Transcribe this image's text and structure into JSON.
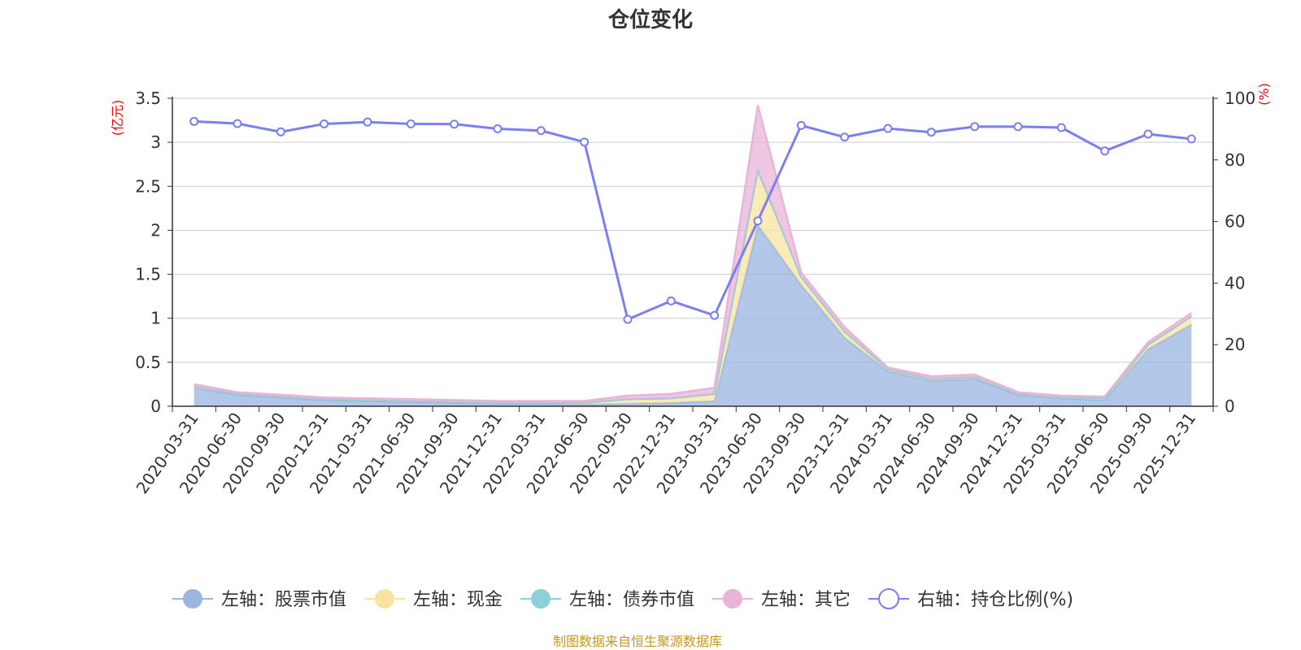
{
  "chart_data": {
    "type": "area",
    "title": "仓位变化",
    "categories": [
      "2020-03-31",
      "2020-06-30",
      "2020-09-30",
      "2020-12-31",
      "2021-03-31",
      "2021-06-30",
      "2021-09-30",
      "2021-12-31",
      "2022-03-31",
      "2022-06-30",
      "2022-09-30",
      "2022-12-31",
      "2023-03-31",
      "2023-06-30",
      "2023-09-30",
      "2023-12-31",
      "2024-03-31",
      "2024-06-30",
      "2024-09-30",
      "2024-12-31",
      "2025-03-31",
      "2025-06-30",
      "2025-09-30",
      "2025-12-31"
    ],
    "left_axis": {
      "unit_label": "(亿元)",
      "ylim": [
        0,
        3.5
      ],
      "ticks": [
        "0",
        "0.5",
        "1",
        "1.5",
        "2",
        "2.5",
        "3",
        "3.5"
      ]
    },
    "right_axis": {
      "unit_label": "(%)",
      "ylim": [
        0,
        100
      ],
      "ticks": [
        "0",
        "20",
        "40",
        "60",
        "80",
        "100"
      ]
    },
    "series": [
      {
        "name": "左轴：股票市值",
        "kind": "area",
        "axis": "left",
        "color": "#9ab6e0",
        "values": [
          0.21,
          0.13,
          0.1,
          0.07,
          0.06,
          0.05,
          0.04,
          0.03,
          0.03,
          0.02,
          0.03,
          0.04,
          0.06,
          2.06,
          1.38,
          0.78,
          0.4,
          0.29,
          0.31,
          0.13,
          0.09,
          0.07,
          0.65,
          0.93
        ]
      },
      {
        "name": "左轴：现金",
        "kind": "area",
        "axis": "left",
        "color": "#f8e4a0",
        "values": [
          0.02,
          0.01,
          0.01,
          0.01,
          0.01,
          0.01,
          0.01,
          0.01,
          0.01,
          0.02,
          0.05,
          0.05,
          0.08,
          0.62,
          0.09,
          0.07,
          0.02,
          0.02,
          0.02,
          0.01,
          0.01,
          0.02,
          0.05,
          0.09
        ]
      },
      {
        "name": "左轴：债券市值",
        "kind": "area",
        "axis": "left",
        "color": "#8ed0d8",
        "values": [
          0,
          0,
          0,
          0,
          0,
          0,
          0,
          0,
          0,
          0,
          0,
          0,
          0,
          0,
          0,
          0,
          0,
          0,
          0,
          0,
          0,
          0,
          0,
          0
        ]
      },
      {
        "name": "左轴：其它",
        "kind": "area",
        "axis": "left",
        "color": "#e8b4d8",
        "values": [
          0.02,
          0.02,
          0.02,
          0.02,
          0.02,
          0.02,
          0.02,
          0.02,
          0.02,
          0.02,
          0.04,
          0.05,
          0.07,
          0.74,
          0.05,
          0.05,
          0.02,
          0.03,
          0.03,
          0.02,
          0.02,
          0.02,
          0.03,
          0.04
        ]
      },
      {
        "name": "右轴：持仓比例(%)",
        "kind": "line",
        "axis": "right",
        "color": "#7b7ff0",
        "values": [
          92.5,
          91.8,
          89.1,
          91.7,
          92.3,
          91.7,
          91.6,
          90.1,
          89.5,
          85.8,
          28.2,
          34.2,
          29.5,
          60.2,
          91.2,
          87.4,
          90.2,
          89.0,
          90.8,
          90.8,
          90.5,
          82.9,
          88.4,
          86.8
        ]
      }
    ]
  },
  "source_text": "制图数据来自恒生聚源数据库"
}
